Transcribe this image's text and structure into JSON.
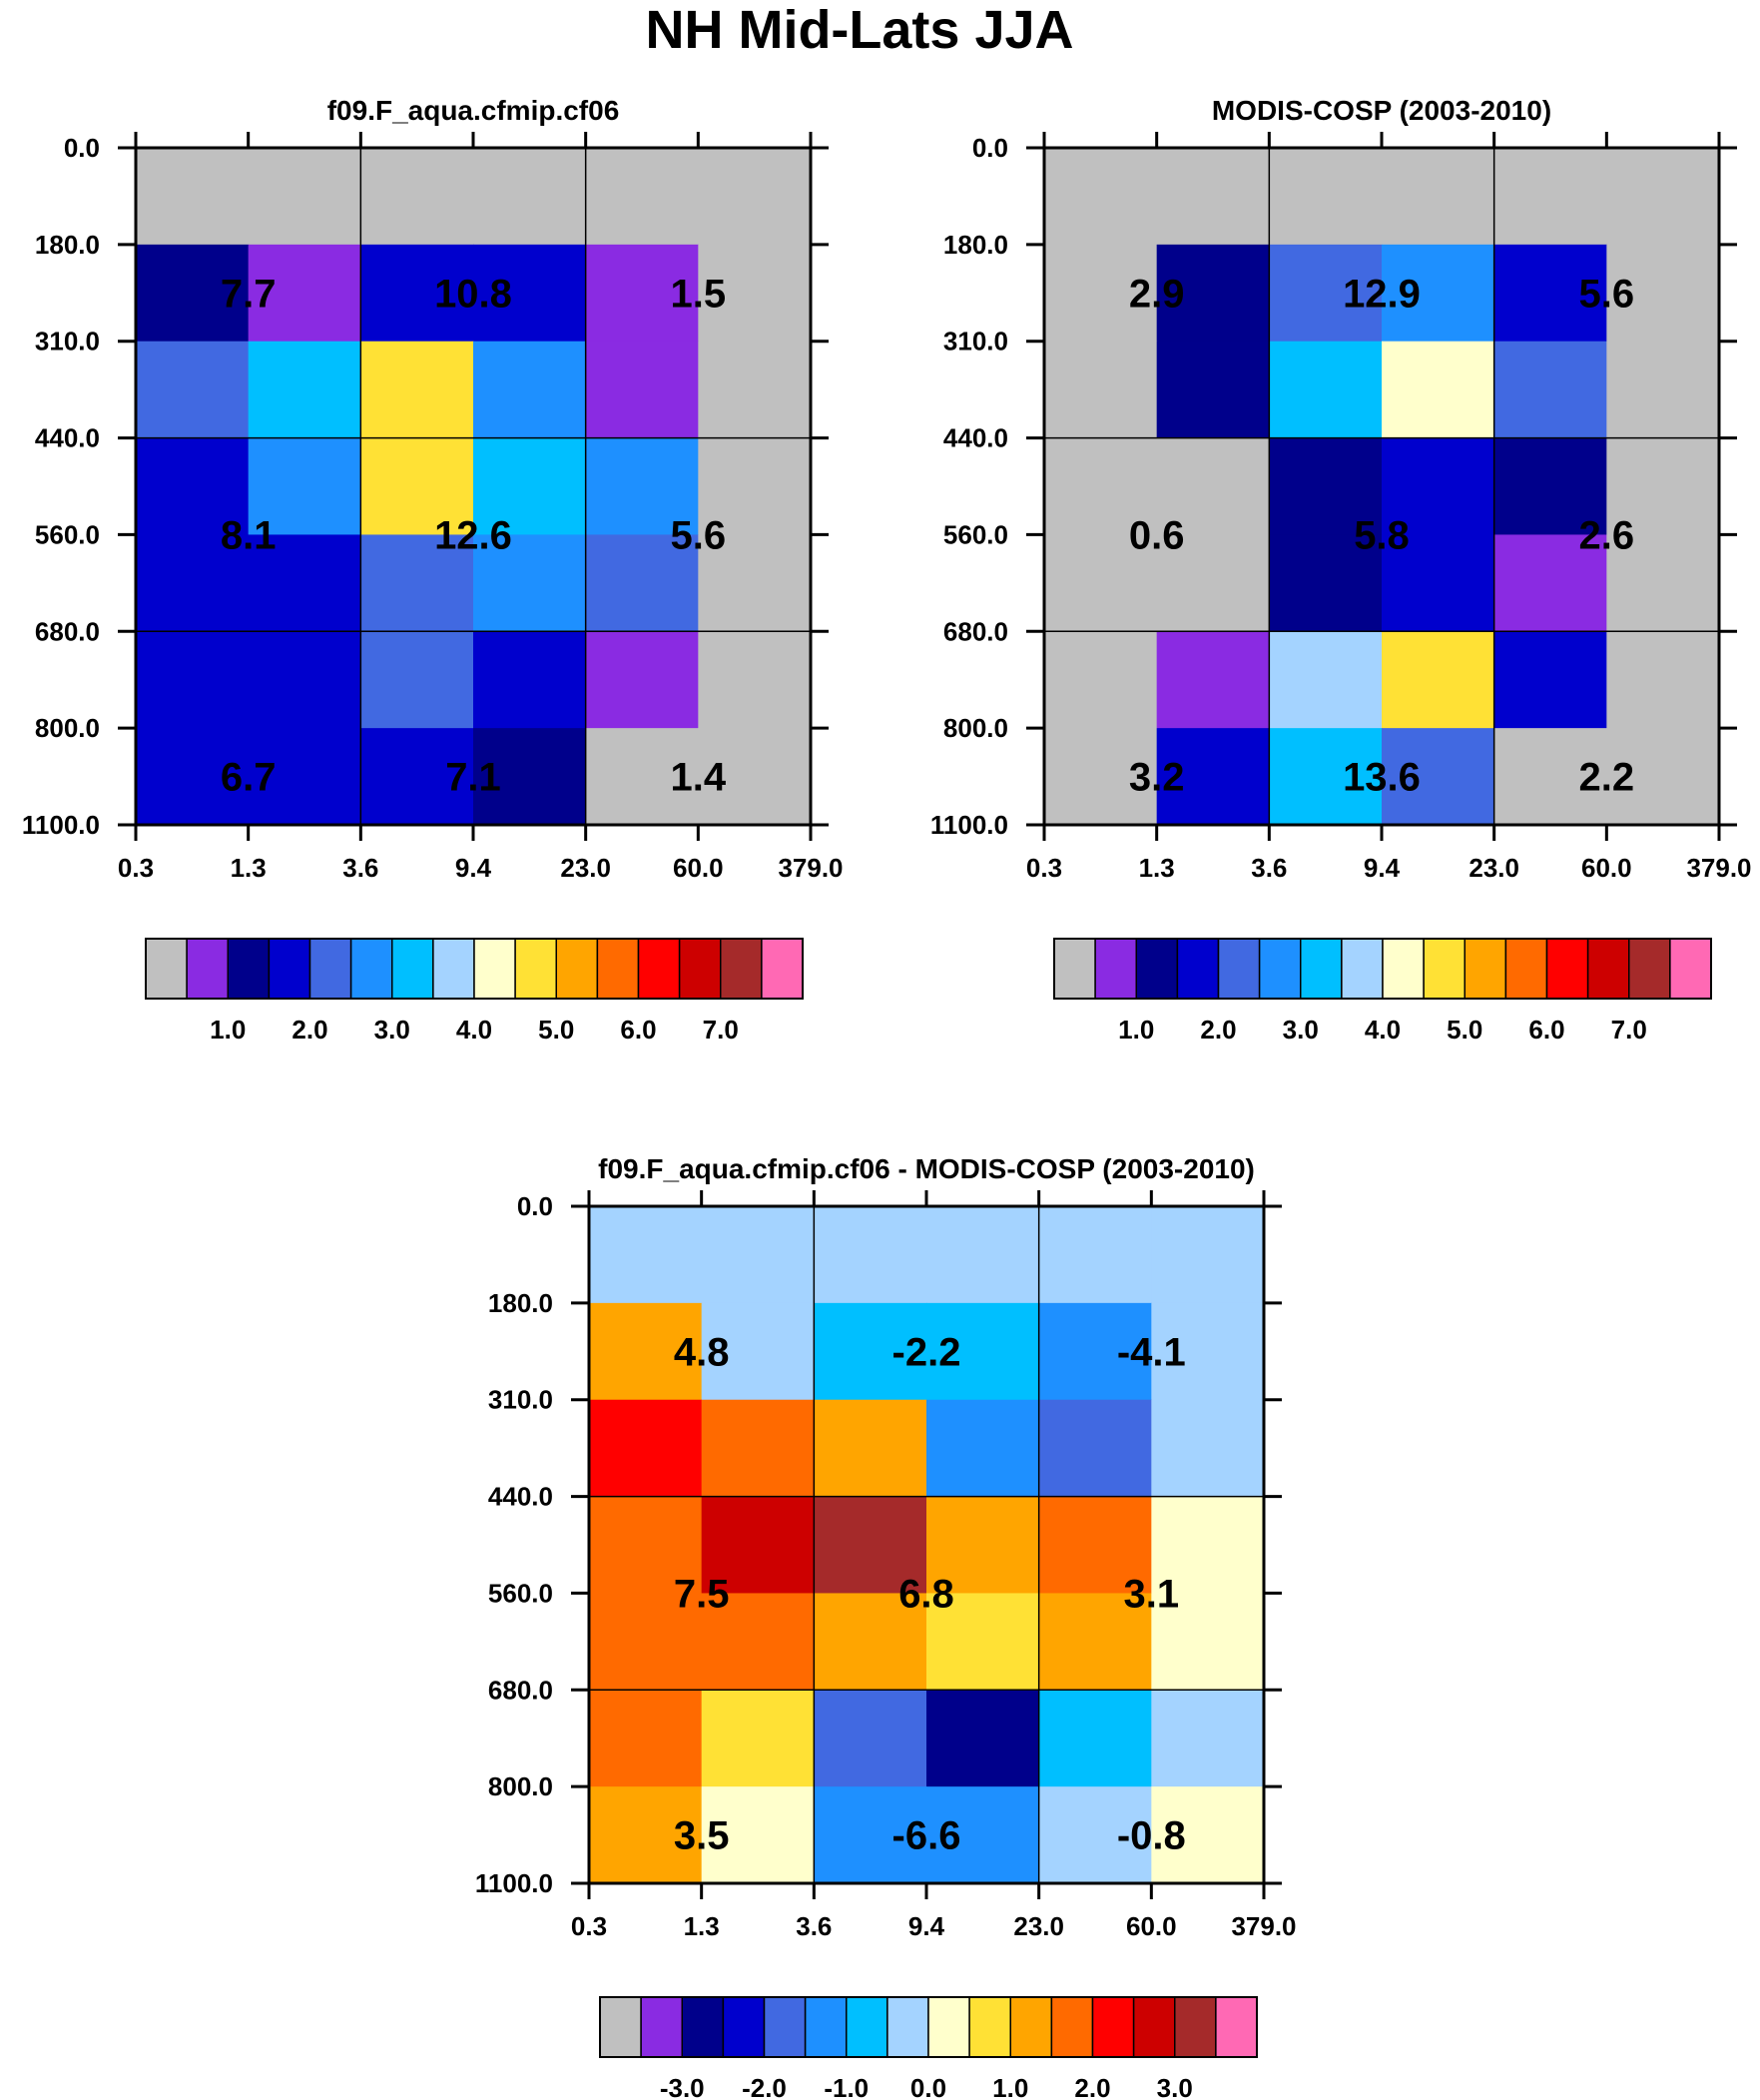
{
  "figure_title": "NH Mid-Lats JJA",
  "chart_data": [
    {
      "id": "model",
      "type": "heatmap",
      "title": "f09.F_aqua.cfmip.cf06",
      "x_ticks": [
        "0.3",
        "1.3",
        "3.6",
        "9.4",
        "23.0",
        "60.0",
        "379.0"
      ],
      "y_ticks": [
        "0.0",
        "180.0",
        "310.0",
        "440.0",
        "560.0",
        "680.0",
        "800.0",
        "1100.0"
      ],
      "color_index": [
        [
          0,
          0,
          0,
          0,
          0,
          0
        ],
        [
          2,
          1,
          3,
          3,
          1,
          0
        ],
        [
          4,
          6,
          9,
          5,
          1,
          0
        ],
        [
          3,
          5,
          9,
          6,
          5,
          0
        ],
        [
          3,
          3,
          4,
          5,
          4,
          0
        ],
        [
          3,
          3,
          4,
          3,
          1,
          0
        ],
        [
          3,
          3,
          3,
          2,
          0,
          0
        ]
      ],
      "block_labels": [
        [
          "7.7",
          "10.8",
          "1.5"
        ],
        [
          "8.1",
          "12.6",
          "5.6"
        ],
        [
          "6.7",
          "7.1",
          "1.4"
        ]
      ],
      "colorbar_labels": [
        "1.0",
        "2.0",
        "3.0",
        "4.0",
        "5.0",
        "6.0",
        "7.0"
      ]
    },
    {
      "id": "obs",
      "type": "heatmap",
      "title": "MODIS-COSP (2003-2010)",
      "x_ticks": [
        "0.3",
        "1.3",
        "3.6",
        "9.4",
        "23.0",
        "60.0",
        "379.0"
      ],
      "y_ticks": [
        "0.0",
        "180.0",
        "310.0",
        "440.0",
        "560.0",
        "680.0",
        "800.0",
        "1100.0"
      ],
      "color_index": [
        [
          0,
          0,
          0,
          0,
          0,
          0
        ],
        [
          0,
          2,
          4,
          5,
          3,
          0
        ],
        [
          0,
          2,
          6,
          8,
          4,
          0
        ],
        [
          0,
          0,
          2,
          3,
          2,
          0
        ],
        [
          0,
          0,
          2,
          3,
          1,
          0
        ],
        [
          0,
          1,
          7,
          9,
          3,
          0
        ],
        [
          0,
          3,
          6,
          4,
          0,
          0
        ]
      ],
      "block_labels": [
        [
          "2.9",
          "12.9",
          "5.6"
        ],
        [
          "0.6",
          "5.8",
          "2.6"
        ],
        [
          "3.2",
          "13.6",
          "2.2"
        ]
      ],
      "colorbar_labels": [
        "1.0",
        "2.0",
        "3.0",
        "4.0",
        "5.0",
        "6.0",
        "7.0"
      ]
    },
    {
      "id": "diff",
      "type": "heatmap",
      "title": "f09.F_aqua.cfmip.cf06 - MODIS-COSP (2003-2010)",
      "x_ticks": [
        "0.3",
        "1.3",
        "3.6",
        "9.4",
        "23.0",
        "60.0",
        "379.0"
      ],
      "y_ticks": [
        "0.0",
        "180.0",
        "310.0",
        "440.0",
        "560.0",
        "680.0",
        "800.0",
        "1100.0"
      ],
      "color_index": [
        [
          7,
          7,
          7,
          7,
          7,
          7
        ],
        [
          10,
          7,
          6,
          6,
          5,
          7
        ],
        [
          12,
          11,
          10,
          5,
          4,
          7
        ],
        [
          11,
          13,
          14,
          10,
          11,
          8
        ],
        [
          11,
          11,
          10,
          9,
          10,
          8
        ],
        [
          11,
          9,
          4,
          2,
          6,
          7
        ],
        [
          10,
          8,
          5,
          5,
          7,
          8
        ]
      ],
      "block_labels": [
        [
          "4.8",
          "-2.2",
          "-4.1"
        ],
        [
          "7.5",
          "6.8",
          "3.1"
        ],
        [
          "3.5",
          "-6.6",
          "-0.8"
        ]
      ],
      "colorbar_labels": [
        "-3.0",
        "-2.0",
        "-1.0",
        "0.0",
        "1.0",
        "2.0",
        "3.0"
      ]
    }
  ],
  "palette": [
    "#c0c0c0",
    "#8a2be2",
    "#00008b",
    "#0000cd",
    "#4169e1",
    "#1e90ff",
    "#00bfff",
    "#a4d3ff",
    "#ffffcc",
    "#ffe135",
    "#ffa500",
    "#ff6a00",
    "#ff0000",
    "#cd0000",
    "#a52a2a",
    "#ff69b4"
  ]
}
